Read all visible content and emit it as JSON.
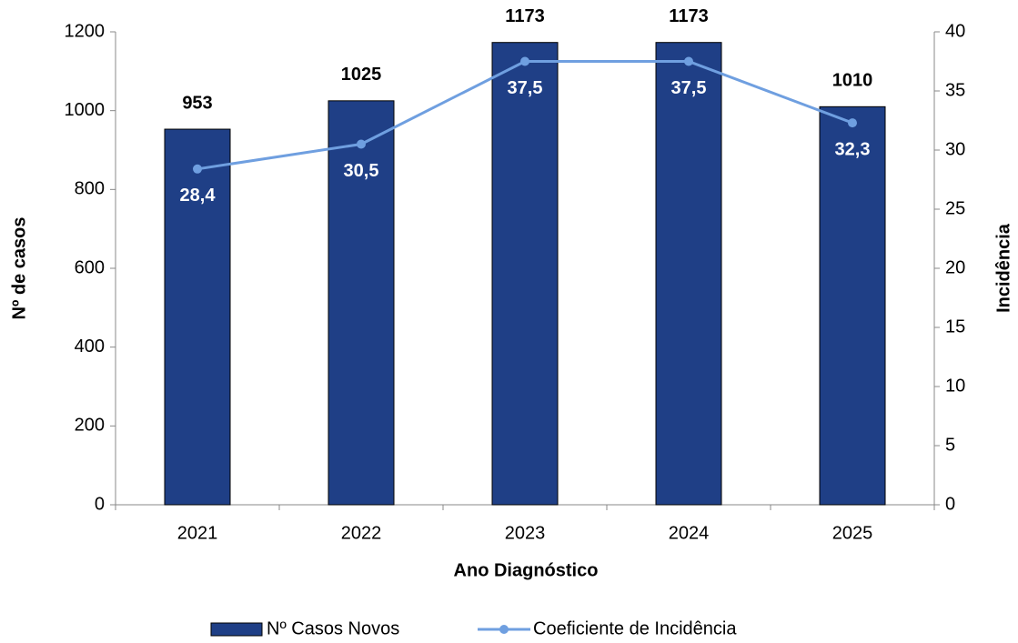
{
  "chart_data": {
    "type": "bar",
    "xlabel": "Ano Diagnóstico",
    "ylabel": "Nº de casos",
    "y2label": "Incidência",
    "categories": [
      "2021",
      "2022",
      "2023",
      "2024",
      "2025"
    ],
    "series": [
      {
        "name": "Nº Casos Novos",
        "type": "bar",
        "color": "#1f3f86",
        "values": [
          953,
          1025,
          1173,
          1173,
          1010
        ]
      },
      {
        "name": "Coeficiente de Incidência",
        "type": "line",
        "axis": "y2",
        "color": "#6f9fe0",
        "values": [
          28.4,
          30.5,
          37.5,
          37.5,
          32.3
        ],
        "value_labels": [
          "28,4",
          "30,5",
          "37,5",
          "37,5",
          "32,3"
        ]
      }
    ],
    "ylim": [
      0,
      1200
    ],
    "yticks": [
      0,
      200,
      400,
      600,
      800,
      1000,
      1200
    ],
    "y2lim": [
      0,
      40
    ],
    "y2ticks": [
      0,
      5,
      10,
      15,
      20,
      25,
      30,
      35,
      40
    ],
    "legend": "bottom"
  }
}
